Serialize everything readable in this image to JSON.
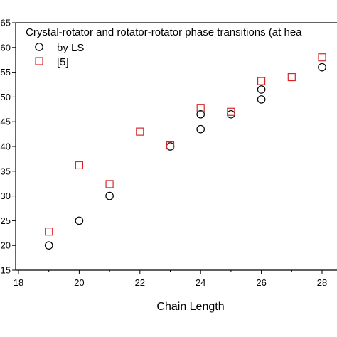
{
  "chart_data": {
    "type": "scatter",
    "title": "Crystal-rotator and rotator-rotator phase transitions  (at hea",
    "xlabel": "Chain Length",
    "ylabel": "",
    "xlim": [
      18,
      29
    ],
    "ylim": [
      15,
      65
    ],
    "x_ticks": [
      18,
      20,
      22,
      24,
      26,
      28
    ],
    "y_ticks": [
      15,
      20,
      25,
      30,
      35,
      40,
      45,
      50,
      55,
      60,
      65
    ],
    "x_tick_labels": [
      "18",
      "20",
      "22",
      "24",
      "26",
      "28"
    ],
    "y_tick_labels": [
      "15",
      "20",
      "25",
      "30",
      "35",
      "40",
      "45",
      "50",
      "55",
      "60",
      "65"
    ],
    "legend_position": "top-left",
    "series": [
      {
        "name": "by LS",
        "marker": "circle",
        "color": "#000000",
        "points": [
          {
            "x": 19,
            "y": 20.0
          },
          {
            "x": 20,
            "y": 25.0
          },
          {
            "x": 21,
            "y": 30.0
          },
          {
            "x": 23,
            "y": 40.0
          },
          {
            "x": 24,
            "y": 43.5
          },
          {
            "x": 24,
            "y": 46.5
          },
          {
            "x": 25,
            "y": 46.5
          },
          {
            "x": 26,
            "y": 49.5
          },
          {
            "x": 26,
            "y": 51.5
          },
          {
            "x": 28,
            "y": 56.0
          }
        ]
      },
      {
        "name": "[5]",
        "marker": "square",
        "color": "#d62728",
        "points": [
          {
            "x": 19,
            "y": 22.8
          },
          {
            "x": 20,
            "y": 36.2
          },
          {
            "x": 21,
            "y": 32.4
          },
          {
            "x": 22,
            "y": 43.0
          },
          {
            "x": 23,
            "y": 40.2
          },
          {
            "x": 24,
            "y": 47.8
          },
          {
            "x": 25,
            "y": 47.0
          },
          {
            "x": 26,
            "y": 53.2
          },
          {
            "x": 27,
            "y": 54.0
          },
          {
            "x": 28,
            "y": 58.0
          }
        ]
      }
    ]
  }
}
